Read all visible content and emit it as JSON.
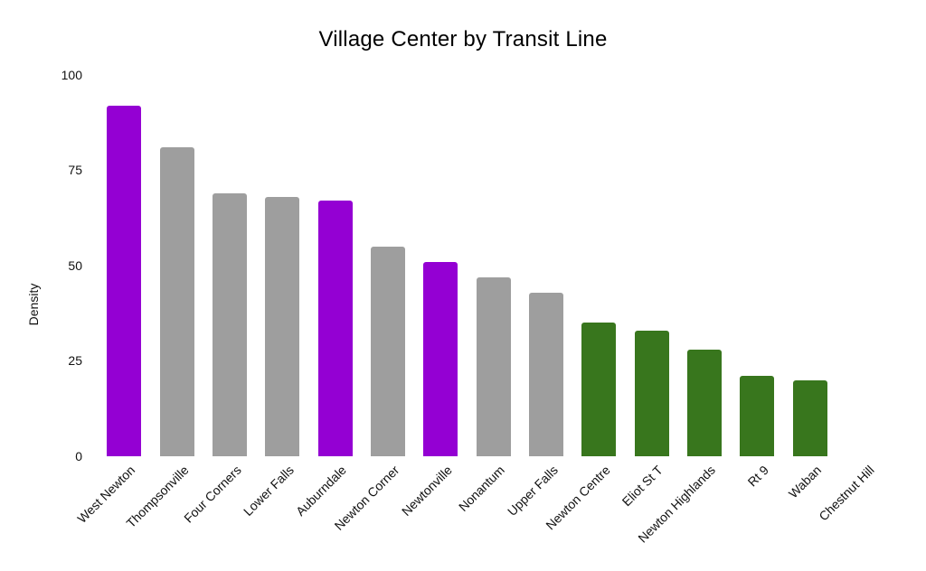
{
  "chart_data": {
    "type": "bar",
    "title": "Village Center by Transit Line",
    "xlabel": "",
    "ylabel": "Density",
    "ylim": [
      0,
      100
    ],
    "yticks": [
      0,
      25,
      50,
      75,
      100
    ],
    "grid": false,
    "legend": false,
    "categories": [
      "West Newton",
      "Thompsonville",
      "Four Corners",
      "Lower Falls",
      "Auburndale",
      "Newton Corner",
      "Newtonville",
      "Nonantum",
      "Upper Falls",
      "Newton Centre",
      "Eliot St T",
      "Newton Highlands",
      "Rt 9",
      "Waban",
      "Chestnut Hill"
    ],
    "values": [
      92,
      81,
      69,
      68,
      67,
      55,
      51,
      47,
      43,
      35,
      33,
      28,
      21,
      20,
      0
    ],
    "bar_color_names": [
      "purple",
      "gray",
      "gray",
      "gray",
      "purple",
      "gray",
      "purple",
      "gray",
      "gray",
      "green",
      "green",
      "green",
      "green",
      "green",
      "none"
    ],
    "colors": {
      "purple": "#9400d3",
      "gray": "#9e9e9e",
      "green": "#38761d",
      "none": "transparent"
    }
  }
}
